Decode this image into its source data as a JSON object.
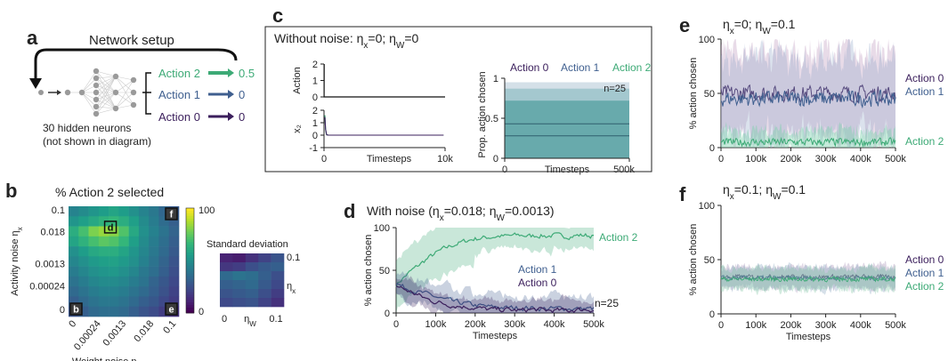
{
  "colors": {
    "action0": "#3b1f5c",
    "action1": "#3f5f8f",
    "action2": "#3daa76"
  },
  "panel_a": {
    "label": "a",
    "title": "Network setup",
    "outputs": [
      {
        "name": "Action 2",
        "value": "0.5"
      },
      {
        "name": "Action 1",
        "value": "0"
      },
      {
        "name": "Action 0",
        "value": "0"
      }
    ],
    "note_line1": "30 hidden neurons",
    "note_line2": "(not shown in diagram)"
  },
  "panel_b": {
    "label": "b"
  },
  "panel_c": {
    "label": "c"
  },
  "panel_d": {
    "label": "d"
  },
  "panel_e": {
    "label": "e"
  },
  "panel_f": {
    "label": "f"
  },
  "chart_data": [
    {
      "id": "b_heatmap",
      "type": "heatmap",
      "title": "% Action 2 selected",
      "xlabel": "Weight noise η_W",
      "ylabel": "Activity noise η_x",
      "xticks": [
        "0",
        "0.00024",
        "0.0013",
        "0.018",
        "0.1"
      ],
      "yticks": [
        "0",
        "0.00024",
        "0.0013",
        "0.018",
        "0.1"
      ],
      "colorbar": {
        "min": 0,
        "max": 100,
        "ticks": [
          "0",
          "100"
        ]
      },
      "markers": [
        "b",
        "d",
        "e",
        "f"
      ],
      "values": [
        [
          45,
          48,
          52,
          55,
          58,
          55,
          50,
          45,
          40,
          33,
          28
        ],
        [
          52,
          56,
          60,
          64,
          66,
          62,
          56,
          48,
          42,
          35,
          30
        ],
        [
          62,
          70,
          80,
          84,
          82,
          72,
          60,
          50,
          44,
          38,
          32
        ],
        [
          58,
          64,
          70,
          74,
          72,
          66,
          56,
          48,
          42,
          36,
          30
        ],
        [
          50,
          55,
          60,
          62,
          62,
          58,
          52,
          46,
          40,
          34,
          28
        ],
        [
          46,
          50,
          54,
          56,
          57,
          54,
          50,
          44,
          38,
          32,
          26
        ],
        [
          42,
          46,
          50,
          52,
          53,
          50,
          46,
          40,
          36,
          30,
          24
        ],
        [
          38,
          42,
          46,
          48,
          48,
          46,
          42,
          38,
          32,
          27,
          22
        ],
        [
          34,
          38,
          42,
          44,
          44,
          42,
          38,
          34,
          30,
          25,
          20
        ],
        [
          30,
          34,
          38,
          40,
          40,
          38,
          34,
          30,
          27,
          22,
          18
        ],
        [
          26,
          30,
          34,
          36,
          36,
          34,
          30,
          26,
          23,
          18,
          14
        ]
      ]
    },
    {
      "id": "b_std",
      "type": "heatmap",
      "title": "Standard deviation",
      "xlabel": "η_W",
      "ylabel": "η_x",
      "xticks": [
        "0",
        "0.1"
      ],
      "ytick": "0.1",
      "values": [
        [
          10,
          8,
          14,
          20,
          26
        ],
        [
          16,
          18,
          24,
          28,
          30
        ],
        [
          34,
          38,
          36,
          30,
          24
        ],
        [
          30,
          32,
          34,
          28,
          22
        ],
        [
          26,
          28,
          30,
          24,
          18
        ],
        [
          22,
          24,
          26,
          20,
          14
        ]
      ]
    },
    {
      "id": "c_action",
      "type": "line",
      "title": "Without noise: η_x=0; η_W=0",
      "ylabel": "Action",
      "yticks": [
        0,
        1,
        2
      ],
      "x": [
        0,
        10,
        100,
        10000
      ],
      "series": [
        {
          "name": "Action",
          "values": [
            2,
            0,
            0,
            0
          ]
        }
      ]
    },
    {
      "id": "c_x2",
      "type": "line",
      "xlabel": "Timesteps",
      "ylabel": "x₂",
      "xticks": [
        "0",
        "10k"
      ],
      "yticks": [
        -1,
        0,
        1,
        2
      ],
      "x": [
        0,
        20,
        60,
        150,
        300,
        10000
      ],
      "series": [
        {
          "name": "x₂",
          "values": [
            1.6,
            0.5,
            0.1,
            0.03,
            0.0,
            0.0
          ]
        }
      ]
    },
    {
      "id": "c_prop",
      "type": "area",
      "xlabel": "Timesteps",
      "ylabel": "Prop. action chosen",
      "xticks": [
        "0",
        "500k"
      ],
      "yticks": [
        "0",
        "0.5",
        "1"
      ],
      "legend": [
        "Action 0",
        "Action 1",
        "Action 2"
      ],
      "annotation": "n=25",
      "mean_lines": [
        0.28,
        0.43
      ],
      "band_lines": [
        0.72,
        0.87
      ]
    },
    {
      "id": "d_noise",
      "type": "line",
      "title": "With noise (η_x=0.018; η_W=0.0013)",
      "xlabel": "Timesteps",
      "ylabel": "% action chosen",
      "xticks": [
        "0",
        "100k",
        "200k",
        "300k",
        "400k",
        "500k"
      ],
      "yticks": [
        "0",
        "50",
        "100"
      ],
      "annotation": "n=25",
      "x": [
        0,
        20,
        40,
        60,
        80,
        100,
        120,
        140,
        160,
        180,
        200,
        220,
        240,
        260,
        280,
        300,
        320,
        340,
        360,
        380,
        400,
        420,
        440,
        460,
        480,
        500
      ],
      "series": [
        {
          "name": "Action 2",
          "values": [
            33,
            42,
            50,
            57,
            64,
            70,
            75,
            79,
            82,
            85,
            87,
            88,
            89,
            90,
            90,
            91,
            91,
            90,
            91,
            90,
            91,
            90,
            90,
            91,
            91,
            90
          ],
          "band": 15
        },
        {
          "name": "Action 1",
          "values": [
            35,
            30,
            27,
            24,
            22,
            19,
            16,
            14,
            12,
            11,
            9,
            8,
            7,
            7,
            6,
            6,
            6,
            6,
            5,
            5,
            5,
            6,
            5,
            5,
            5,
            5
          ],
          "band": 10
        },
        {
          "name": "Action 0",
          "values": [
            32,
            28,
            24,
            20,
            16,
            13,
            11,
            9,
            8,
            7,
            6,
            5,
            4,
            4,
            4,
            3,
            3,
            4,
            4,
            3,
            3,
            3,
            3,
            4,
            4,
            4
          ],
          "band": 8
        }
      ]
    },
    {
      "id": "e_plot",
      "type": "line",
      "title": "η_x=0; η_W=0.1",
      "ylabel": "% action chosen",
      "xticks": [
        "0",
        "100k",
        "200k",
        "300k",
        "400k",
        "500k"
      ],
      "yticks": [
        "0",
        "50",
        "100"
      ],
      "series": [
        {
          "name": "Action 0",
          "mean": 50,
          "band": 38
        },
        {
          "name": "Action 1",
          "mean": 45,
          "band": 38
        },
        {
          "name": "Action 2",
          "mean": 5,
          "band": 10
        }
      ]
    },
    {
      "id": "f_plot",
      "type": "line",
      "title": "η_x=0.1; η_W=0.1",
      "xlabel": "Timesteps",
      "ylabel": "% action chosen",
      "xticks": [
        "0",
        "100k",
        "200k",
        "300k",
        "400k",
        "500k"
      ],
      "yticks": [
        "0",
        "50",
        "100"
      ],
      "series": [
        {
          "name": "Action 0",
          "mean": 34,
          "band": 10
        },
        {
          "name": "Action 1",
          "mean": 33,
          "band": 10
        },
        {
          "name": "Action 2",
          "mean": 32,
          "band": 10
        }
      ]
    }
  ]
}
